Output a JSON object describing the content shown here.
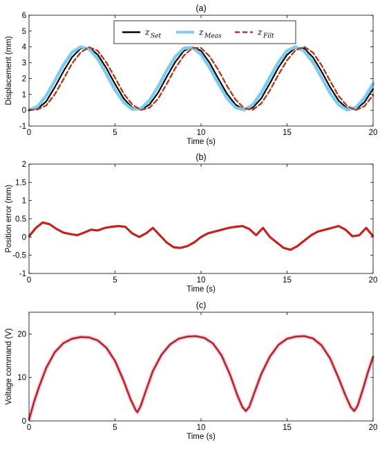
{
  "colors": {
    "set": "#000000",
    "meas": "#7ecbf0",
    "filt": "#b23a1e",
    "error": "#e01a1a",
    "error_dark": "#6b3a2a",
    "voltage": "#b02a18",
    "voltage_halo": "#f2a6e6"
  },
  "chart_data": [
    {
      "type": "line",
      "title": "(a)",
      "xlabel": "Time (s)",
      "ylabel": "Displacement (mm)",
      "xlim": [
        0,
        20
      ],
      "ylim": [
        -1,
        6
      ],
      "xticks": [
        "0",
        "5",
        "10",
        "15",
        "20"
      ],
      "yticks": [
        "-1",
        "0",
        "1",
        "2",
        "3",
        "4",
        "5",
        "6"
      ],
      "grid": false,
      "legend": {
        "placement": "top-center",
        "entries": [
          {
            "base": "z",
            "sub": "Set"
          },
          {
            "base": "z",
            "sub": "Meas"
          },
          {
            "base": "z",
            "sub": "Filt"
          }
        ]
      },
      "series": [
        {
          "name": "z_Set",
          "style": "solid",
          "x": [
            0,
            0.5,
            1,
            1.5,
            2,
            2.5,
            3,
            3.5,
            4,
            4.5,
            5,
            5.5,
            6,
            6.5,
            7,
            7.5,
            8,
            8.5,
            9,
            9.5,
            10,
            10.5,
            11,
            11.5,
            12,
            12.5,
            13,
            13.5,
            14,
            14.5,
            15,
            15.5,
            16,
            16.5,
            17,
            17.5,
            18,
            18.5,
            19,
            19.5,
            20
          ],
          "y": [
            0.0,
            0.24,
            0.91,
            1.86,
            2.86,
            3.65,
            4.0,
            3.85,
            3.23,
            2.28,
            1.28,
            0.49,
            0.05,
            0.1,
            0.61,
            1.48,
            2.49,
            3.38,
            3.91,
            3.96,
            3.52,
            2.69,
            1.68,
            0.77,
            0.17,
            0.01,
            0.34,
            1.1,
            2.08,
            3.04,
            3.76,
            4.0,
            3.73,
            3.04,
            2.07,
            1.08,
            0.34,
            0.01,
            0.17,
            0.77,
            1.68
          ]
        },
        {
          "name": "z_Meas",
          "style": "solid",
          "x": [
            0,
            0.5,
            1,
            1.5,
            2,
            2.5,
            3,
            3.5,
            4,
            4.5,
            5,
            5.5,
            6,
            6.5,
            7,
            7.5,
            8,
            8.5,
            9,
            9.5,
            10,
            10.5,
            11,
            11.5,
            12,
            12.5,
            13,
            13.5,
            14,
            14.5,
            15,
            15.5,
            16,
            16.5,
            17,
            17.5,
            18,
            18.5,
            19,
            19.5,
            20
          ],
          "y": [
            0.05,
            0.1,
            0.55,
            1.45,
            2.45,
            3.35,
            3.9,
            3.95,
            3.5,
            2.65,
            1.65,
            0.75,
            0.15,
            0.02,
            0.35,
            1.1,
            2.1,
            3.05,
            3.75,
            4.0,
            3.75,
            3.0,
            2.0,
            1.05,
            0.35,
            0.02,
            0.15,
            0.75,
            1.7,
            2.7,
            3.5,
            3.95,
            3.9,
            3.35,
            2.45,
            1.45,
            0.6,
            0.1,
            0.05,
            0.5,
            1.35
          ]
        },
        {
          "name": "z_Filt",
          "style": "dashed",
          "x": [
            0,
            0.5,
            1,
            1.5,
            2,
            2.5,
            3,
            3.5,
            4,
            4.5,
            5,
            5.5,
            6,
            6.5,
            7,
            7.5,
            8,
            8.5,
            9,
            9.5,
            10,
            10.5,
            11,
            11.5,
            12,
            12.5,
            13,
            13.5,
            14,
            14.5,
            15,
            15.5,
            16,
            16.5,
            17,
            17.5,
            18,
            18.5,
            19,
            19.5,
            20
          ],
          "y": [
            0.0,
            0.05,
            0.3,
            1.0,
            1.95,
            2.95,
            3.65,
            3.98,
            3.75,
            3.0,
            2.05,
            1.05,
            0.35,
            0.02,
            0.15,
            0.72,
            1.65,
            2.65,
            3.45,
            3.93,
            3.93,
            3.4,
            2.55,
            1.55,
            0.68,
            0.12,
            0.02,
            0.42,
            1.25,
            2.25,
            3.15,
            3.8,
            4.0,
            3.65,
            2.85,
            1.85,
            0.9,
            0.25,
            0.01,
            0.25,
            0.95
          ]
        }
      ]
    },
    {
      "type": "line",
      "title": "(b)",
      "xlabel": "Time (s)",
      "ylabel": "Position error (mm)",
      "xlim": [
        0,
        20
      ],
      "ylim": [
        -1,
        2
      ],
      "xticks": [
        "0",
        "5",
        "10",
        "15",
        "20"
      ],
      "yticks": [
        "-1",
        "-0.5",
        "0",
        "0.5",
        "1",
        "1.5",
        "2"
      ],
      "grid": false,
      "series": [
        {
          "name": "",
          "style": "solid",
          "x": [
            0,
            0.4,
            0.8,
            1.2,
            1.6,
            2.0,
            2.4,
            2.8,
            3.2,
            3.6,
            4.0,
            4.4,
            4.8,
            5.2,
            5.6,
            6.0,
            6.4,
            6.8,
            7.2,
            7.6,
            8.0,
            8.4,
            8.8,
            9.2,
            9.6,
            10.0,
            10.4,
            10.8,
            11.2,
            11.6,
            12.0,
            12.4,
            12.8,
            13.2,
            13.6,
            14.0,
            14.4,
            14.8,
            15.2,
            15.6,
            16.0,
            16.4,
            16.8,
            17.2,
            17.6,
            18.0,
            18.4,
            18.8,
            19.2,
            19.6,
            20.0
          ],
          "y": [
            0.02,
            0.25,
            0.4,
            0.35,
            0.22,
            0.12,
            0.08,
            0.05,
            0.12,
            0.2,
            0.18,
            0.25,
            0.28,
            0.3,
            0.28,
            0.1,
            0.0,
            0.1,
            0.25,
            0.05,
            -0.15,
            -0.28,
            -0.3,
            -0.25,
            -0.15,
            0.0,
            0.1,
            0.15,
            0.2,
            0.25,
            0.28,
            0.3,
            0.22,
            0.05,
            0.25,
            0.0,
            -0.15,
            -0.3,
            -0.35,
            -0.25,
            -0.1,
            0.05,
            0.15,
            0.2,
            0.25,
            0.3,
            0.2,
            0.02,
            0.05,
            0.25,
            0.02
          ]
        }
      ]
    },
    {
      "type": "line",
      "title": "(c)",
      "xlabel": "Time (s)",
      "ylabel": "Voltage command (V)",
      "xlim": [
        0,
        20
      ],
      "ylim": [
        0,
        25
      ],
      "xticks": [
        "0",
        "5",
        "10",
        "15",
        "20"
      ],
      "yticks": [
        "0",
        "10",
        "20"
      ],
      "grid": false,
      "series": [
        {
          "name": "",
          "style": "solid",
          "x": [
            0,
            0.3,
            0.6,
            1.0,
            1.5,
            2.0,
            2.5,
            3.0,
            3.5,
            4.0,
            4.5,
            5.0,
            5.5,
            5.9,
            6.2,
            6.3,
            6.5,
            6.8,
            7.2,
            7.7,
            8.2,
            8.7,
            9.2,
            9.7,
            10.2,
            10.7,
            11.2,
            11.7,
            12.1,
            12.4,
            12.6,
            12.8,
            13.1,
            13.5,
            14.0,
            14.5,
            15.0,
            15.5,
            16.0,
            16.5,
            17.0,
            17.5,
            18.0,
            18.4,
            18.7,
            18.9,
            19.1,
            19.4,
            19.7,
            20.0
          ],
          "y": [
            0.3,
            4.5,
            8.0,
            12.2,
            15.8,
            17.9,
            18.9,
            19.3,
            19.2,
            18.5,
            16.8,
            13.8,
            9.2,
            5.0,
            2.5,
            2.0,
            3.5,
            7.0,
            11.5,
            15.2,
            17.6,
            18.9,
            19.4,
            19.5,
            19.1,
            17.8,
            15.0,
            10.5,
            6.0,
            3.2,
            2.3,
            3.2,
            6.5,
            10.8,
            14.8,
            17.5,
            18.9,
            19.4,
            19.5,
            19.0,
            17.4,
            14.4,
            9.8,
            5.8,
            3.2,
            2.3,
            3.5,
            7.2,
            11.2,
            14.8
          ]
        }
      ]
    }
  ]
}
